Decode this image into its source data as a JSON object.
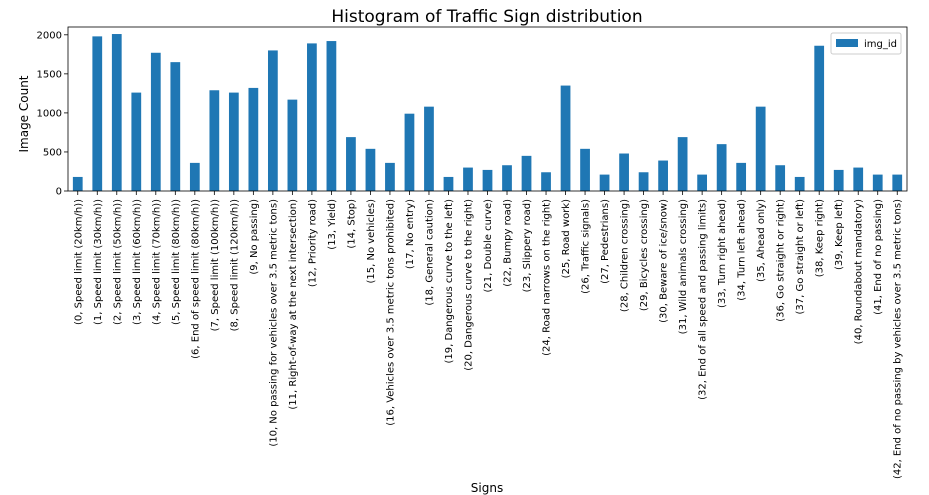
{
  "chart_data": {
    "type": "bar",
    "title": "Histogram of Traffic Sign distribution",
    "xlabel": "Signs",
    "ylabel": "Image Count",
    "ylim": [
      0,
      2100
    ],
    "yticks": [
      "0",
      "500",
      "1000",
      "1500",
      "2000"
    ],
    "ytick_values": [
      0,
      500,
      1000,
      1500,
      2000
    ],
    "grid": false,
    "legend": {
      "placement": "top-right"
    },
    "series": [
      {
        "name": "img_id",
        "color": "#1f77b4"
      }
    ],
    "categories": [
      "(0, Speed limit (20km/h))",
      "(1, Speed limit (30km/h))",
      "(2, Speed limit (50km/h))",
      "(3, Speed limit (60km/h))",
      "(4, Speed limit (70km/h))",
      "(5, Speed limit (80km/h))",
      "(6, End of speed limit (80km/h))",
      "(7, Speed limit (100km/h))",
      "(8, Speed limit (120km/h))",
      "(9, No passing)",
      "(10, No passing for vehicles over 3.5 metric tons)",
      "(11, Right-of-way at the next intersection)",
      "(12, Priority road)",
      "(13, Yield)",
      "(14, Stop)",
      "(15, No vehicles)",
      "(16, Vehicles over 3.5 metric tons prohibited)",
      "(17, No entry)",
      "(18, General caution)",
      "(19, Dangerous curve to the left)",
      "(20, Dangerous curve to the right)",
      "(21, Double curve)",
      "(22, Bumpy road)",
      "(23, Slippery road)",
      "(24, Road narrows on the right)",
      "(25, Road work)",
      "(26, Traffic signals)",
      "(27, Pedestrians)",
      "(28, Children crossing)",
      "(29, Bicycles crossing)",
      "(30, Beware of ice/snow)",
      "(31, Wild animals crossing)",
      "(32, End of all speed and passing limits)",
      "(33, Turn right ahead)",
      "(34, Turn left ahead)",
      "(35, Ahead only)",
      "(36, Go straight or right)",
      "(37, Go straight or left)",
      "(38, Keep right)",
      "(39, Keep left)",
      "(40, Roundabout mandatory)",
      "(41, End of no passing)",
      "(42, End of no passing by vehicles over 3.5 metric tons)"
    ],
    "values": [
      180,
      1980,
      2010,
      1260,
      1770,
      1650,
      360,
      1290,
      1260,
      1320,
      1800,
      1170,
      1890,
      1920,
      690,
      540,
      360,
      990,
      1080,
      180,
      300,
      270,
      330,
      450,
      240,
      1350,
      540,
      210,
      480,
      240,
      390,
      690,
      210,
      600,
      360,
      1080,
      330,
      180,
      1860,
      270,
      300,
      210,
      210
    ]
  }
}
